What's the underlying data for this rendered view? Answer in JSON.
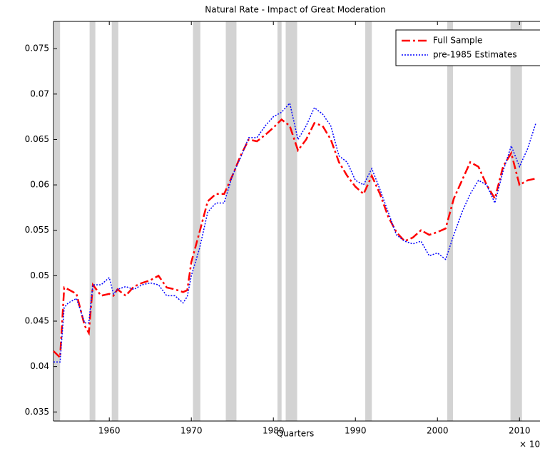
{
  "chart_data": {
    "type": "line",
    "title": "Natural Rate - Impact of Great Moderation",
    "x_label": "Quarters",
    "x_exponent": "× 10",
    "x": [
      1953.2,
      1954,
      1954.5,
      1955,
      1956,
      1957,
      1957.5,
      1958,
      1959,
      1960,
      1960.5,
      1961,
      1962,
      1963,
      1964,
      1965,
      1966,
      1967,
      1968,
      1969,
      1969.5,
      1970,
      1971,
      1972,
      1973,
      1974,
      1975,
      1976,
      1977,
      1978,
      1979,
      1980,
      1981,
      1982,
      1983,
      1984,
      1985,
      1986,
      1987,
      1988,
      1989,
      1990,
      1991,
      1992,
      1993,
      1994,
      1995,
      1996,
      1997,
      1998,
      1999,
      2000,
      2001,
      2002,
      2003,
      2004,
      2005,
      2006,
      2007,
      2008,
      2009,
      2010,
      2011,
      2012
    ],
    "series": [
      {
        "name": "Full Sample",
        "color": "#ff0000",
        "dash": "12,4,3,4",
        "values": [
          0.0417,
          0.041,
          0.0487,
          0.0485,
          0.048,
          0.0445,
          0.0437,
          0.049,
          0.0478,
          0.048,
          0.0478,
          0.0485,
          0.0478,
          0.0488,
          0.0492,
          0.0495,
          0.05,
          0.0487,
          0.0485,
          0.0482,
          0.0484,
          0.0515,
          0.0548,
          0.0582,
          0.059,
          0.059,
          0.061,
          0.0632,
          0.065,
          0.0648,
          0.0655,
          0.0663,
          0.0672,
          0.0665,
          0.0638,
          0.065,
          0.0668,
          0.0665,
          0.065,
          0.0625,
          0.061,
          0.0598,
          0.059,
          0.061,
          0.059,
          0.0565,
          0.0548,
          0.0538,
          0.0542,
          0.055,
          0.0545,
          0.0548,
          0.0552,
          0.0585,
          0.0605,
          0.0625,
          0.062,
          0.06,
          0.0585,
          0.062,
          0.0635,
          0.06,
          0.0605,
          0.0607
        ]
      },
      {
        "name": "pre-1985 Estimates",
        "color": "#0000ff",
        "dash": "2,2",
        "values": [
          0.0405,
          0.0405,
          0.0465,
          0.047,
          0.0475,
          0.0448,
          0.0448,
          0.049,
          0.049,
          0.0498,
          0.048,
          0.0485,
          0.0488,
          0.0485,
          0.049,
          0.0492,
          0.049,
          0.0478,
          0.0478,
          0.047,
          0.0477,
          0.05,
          0.053,
          0.057,
          0.058,
          0.058,
          0.061,
          0.063,
          0.0652,
          0.0652,
          0.0665,
          0.0675,
          0.068,
          0.069,
          0.065,
          0.0665,
          0.0685,
          0.0678,
          0.0665,
          0.0632,
          0.0625,
          0.0605,
          0.06,
          0.0618,
          0.0595,
          0.057,
          0.0545,
          0.0538,
          0.0535,
          0.0538,
          0.0522,
          0.0525,
          0.0518,
          0.0545,
          0.057,
          0.059,
          0.0605,
          0.06,
          0.058,
          0.0615,
          0.0643,
          0.062,
          0.064,
          0.0668
        ]
      }
    ],
    "recessions": [
      [
        1953.3,
        1954.0
      ],
      [
        1957.6,
        1958.3
      ],
      [
        1960.3,
        1961.1
      ],
      [
        1970.2,
        1971.1
      ],
      [
        1974.2,
        1975.5
      ],
      [
        1980.5,
        1981.0
      ],
      [
        1981.5,
        1982.9
      ],
      [
        1991.2,
        1992.0
      ],
      [
        2001.2,
        2001.9
      ],
      [
        2008.9,
        2010.3
      ]
    ],
    "recession_color": "#d3d3d3",
    "xlim": [
      1953.2,
      2012.5
    ],
    "ylim": [
      0.034,
      0.078
    ],
    "xticks": [
      1960,
      1970,
      1980,
      1990,
      2000,
      2010
    ],
    "yticks": [
      0.035,
      0.04,
      0.045,
      0.05,
      0.055,
      0.06,
      0.065,
      0.07,
      0.075
    ],
    "legend": "upper right"
  }
}
